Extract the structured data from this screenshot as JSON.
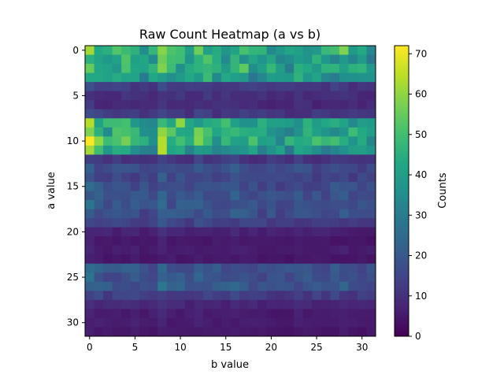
{
  "chart_data": {
    "type": "heatmap",
    "title": "Raw Count Heatmap (a vs b)",
    "xlabel": "b value",
    "ylabel": "a value",
    "x_ticks": [
      0,
      5,
      10,
      15,
      20,
      25,
      30
    ],
    "y_ticks": [
      0,
      5,
      10,
      15,
      20,
      25,
      30
    ],
    "rows": 32,
    "cols": 32,
    "colormap": "viridis",
    "colorbar": {
      "label": "Counts",
      "ticks": [
        0,
        10,
        20,
        30,
        40,
        50,
        60,
        70
      ],
      "range": [
        0,
        72
      ]
    },
    "row_levels": [
      45,
      43,
      45,
      40,
      13,
      10,
      9,
      12,
      45,
      45,
      47,
      41,
      12,
      17,
      16,
      18,
      19,
      19,
      18,
      14,
      7,
      5,
      6,
      5,
      20,
      19,
      20,
      14,
      8,
      6,
      6,
      5
    ],
    "col_factors": [
      1.25,
      1.05,
      0.95,
      0.95,
      1.0,
      0.95,
      0.9,
      0.9,
      1.2,
      1.0,
      1.0,
      0.95,
      1.05,
      1.05,
      0.95,
      0.95,
      1.05,
      1.0,
      0.9,
      0.9,
      0.9,
      0.85,
      0.85,
      0.95,
      0.9,
      0.9,
      0.9,
      0.95,
      1.0,
      0.9,
      0.85,
      0.85
    ],
    "highlights": [
      {
        "row": 0,
        "col": 0,
        "value": 62
      },
      {
        "row": 0,
        "col": 28,
        "value": 58
      },
      {
        "row": 0,
        "col": 12,
        "value": 56
      },
      {
        "row": 2,
        "col": 0,
        "value": 55
      },
      {
        "row": 2,
        "col": 8,
        "value": 58
      },
      {
        "row": 1,
        "col": 8,
        "value": 56
      },
      {
        "row": 8,
        "col": 0,
        "value": 64
      },
      {
        "row": 8,
        "col": 10,
        "value": 60
      },
      {
        "row": 9,
        "col": 8,
        "value": 60
      },
      {
        "row": 9,
        "col": 0,
        "value": 58
      },
      {
        "row": 10,
        "col": 0,
        "value": 72
      },
      {
        "row": 10,
        "col": 1,
        "value": 60
      },
      {
        "row": 11,
        "col": 0,
        "value": 62
      },
      {
        "row": 11,
        "col": 8,
        "value": 64
      }
    ]
  }
}
